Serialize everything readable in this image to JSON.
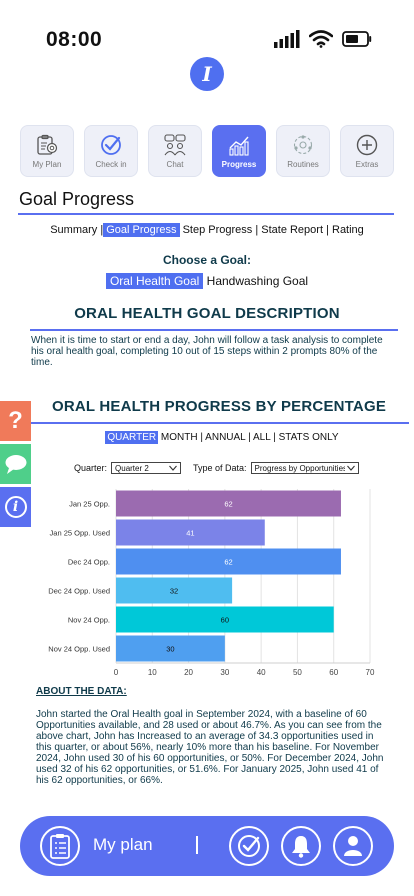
{
  "status_bar": {
    "time": "08:00"
  },
  "app": {
    "logo_letter": "I"
  },
  "nav": {
    "items": [
      {
        "label": "My Plan",
        "icon": "clipboard-target-icon"
      },
      {
        "label": "Check in",
        "icon": "check-circle-icon"
      },
      {
        "label": "Chat",
        "icon": "chat-people-icon"
      },
      {
        "label": "Progress",
        "icon": "bar-chart-icon",
        "active": true
      },
      {
        "label": "Routines",
        "icon": "routine-cycle-icon"
      },
      {
        "label": "Extras",
        "icon": "plus-circle-icon"
      }
    ]
  },
  "page": {
    "title": "Goal Progress"
  },
  "subtabs": {
    "summary": "Summary",
    "goal_progress": "Goal Progress",
    "step_progress": "Step Progress",
    "state_report": "State Report",
    "rating": "Rating",
    "separator": "|"
  },
  "goal_select": {
    "heading": "Choose a Goal:",
    "oral_health": "Oral Health Goal",
    "handwashing": "Handwashing Goal"
  },
  "description": {
    "heading": "ORAL HEALTH GOAL DESCRIPTION",
    "text": "When it is time to start or end a day, John will follow a task analysis to complete his oral health goal, completing 10 out of 15 steps within 2 prompts 80% of the time."
  },
  "side_tabs": {
    "help": "?",
    "info": "i"
  },
  "progress": {
    "heading": "ORAL HEALTH PROGRESS BY PERCENTAGE",
    "periods": {
      "quarter": "QUARTER",
      "month": "MONTH",
      "annual": "ANNUAL",
      "all": "ALL",
      "stats_only": "STATS ONLY",
      "separator": "|"
    },
    "quarter_label": "Quarter:",
    "quarter_value": "Quarter 2",
    "type_label": "Type of Data:",
    "type_value": "Progress by Opportunities"
  },
  "chart_data": {
    "type": "bar",
    "orientation": "horizontal",
    "categories": [
      "Jan 25 Opp.",
      "Jan 25 Opp. Used",
      "Dec 24 Opp.",
      "Dec 24 Opp. Used",
      "Nov 24 Opp.",
      "Nov 24 Opp. Used"
    ],
    "values": [
      62,
      41,
      62,
      32,
      60,
      30
    ],
    "colors": [
      "#9b6bb0",
      "#7b83e8",
      "#4f8ff0",
      "#4fbdf0",
      "#00c8d8",
      "#4f9ff0"
    ],
    "xlim": [
      0,
      70
    ],
    "xticks": [
      0,
      10,
      20,
      30,
      40,
      50,
      60,
      70
    ],
    "data_labels": true,
    "grid": true
  },
  "about": {
    "heading": "ABOUT THE DATA:",
    "text": "John started the Oral Health goal in September 2024, with a baseline of 60 Opportunities available, and 28 used or about 46.7%. As you can see from the above chart, John has Increased to an average of 34.3 opportunities used in this quarter, or about 56%, nearly 10% more than his baseline. For November 2024, John used 30 of his 60 opportunities, or 50%. For December 2024, John used 32 of his 62 opportunities, or 51.6%.  For January 2025, John used 41 of his 62 opportunities, or 66%."
  },
  "bottom_bar": {
    "label": "My plan"
  }
}
